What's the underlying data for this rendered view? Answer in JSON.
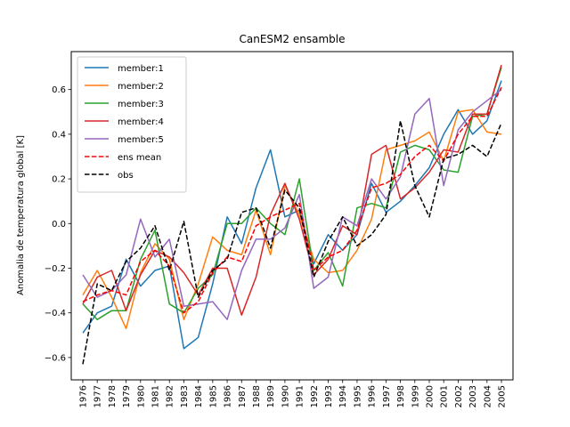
{
  "chart_data": {
    "type": "line",
    "title": "CanESM2 ensamble",
    "xlabel": "",
    "ylabel": "Anomalia de temperatura global [K]",
    "ylim": [
      -0.7,
      0.77
    ],
    "xlim": [
      1975.2,
      2005.8
    ],
    "yticks": [
      -0.6,
      -0.4,
      -0.2,
      0.0,
      0.2,
      0.4,
      0.6
    ],
    "ytick_labels": [
      "−0.6",
      "−0.4",
      "−0.2",
      "0.0",
      "0.2",
      "0.4",
      "0.6"
    ],
    "legend_position": "upper-left",
    "grid": false,
    "x": [
      1976,
      1977,
      1978,
      1979,
      1980,
      1981,
      1982,
      1983,
      1984,
      1985,
      1986,
      1987,
      1988,
      1989,
      1990,
      1991,
      1992,
      1993,
      1994,
      1995,
      1996,
      1997,
      1998,
      1999,
      2000,
      2001,
      2002,
      2003,
      2004,
      2005
    ],
    "series": [
      {
        "name": "member:1",
        "color": "#1f77b4",
        "dash": "solid",
        "values": [
          -0.49,
          -0.4,
          -0.37,
          -0.16,
          -0.28,
          -0.21,
          -0.19,
          -0.56,
          -0.51,
          -0.27,
          0.03,
          -0.09,
          0.16,
          0.33,
          0.03,
          0.06,
          -0.18,
          -0.05,
          -0.12,
          -0.05,
          0.18,
          0.05,
          0.1,
          0.17,
          0.25,
          0.4,
          0.51,
          0.4,
          0.46,
          0.64
        ]
      },
      {
        "name": "member:2",
        "color": "#ff7f0e",
        "dash": "solid",
        "values": [
          -0.32,
          -0.21,
          -0.33,
          -0.47,
          -0.22,
          -0.09,
          -0.16,
          -0.43,
          -0.27,
          -0.06,
          -0.12,
          -0.14,
          0.06,
          -0.14,
          0.17,
          0.04,
          -0.16,
          -0.22,
          -0.21,
          -0.12,
          0.02,
          0.33,
          0.35,
          0.37,
          0.41,
          0.28,
          0.5,
          0.51,
          0.41,
          0.4
        ]
      },
      {
        "name": "member:3",
        "color": "#2ca02c",
        "dash": "solid",
        "values": [
          -0.36,
          -0.43,
          -0.39,
          -0.39,
          -0.16,
          -0.03,
          -0.36,
          -0.4,
          -0.29,
          -0.23,
          0.0,
          0.0,
          0.07,
          0.0,
          -0.05,
          0.2,
          -0.21,
          -0.13,
          -0.28,
          0.07,
          0.09,
          0.07,
          0.32,
          0.35,
          0.33,
          0.24,
          0.23,
          0.48,
          0.49,
          0.7
        ]
      },
      {
        "name": "member:4",
        "color": "#d62728",
        "dash": "solid",
        "values": [
          -0.36,
          -0.24,
          -0.21,
          -0.39,
          -0.23,
          -0.12,
          -0.15,
          -0.22,
          -0.32,
          -0.2,
          -0.2,
          -0.41,
          -0.24,
          0.04,
          0.18,
          0.02,
          -0.23,
          -0.16,
          -0.01,
          -0.05,
          0.31,
          0.35,
          0.11,
          0.16,
          0.23,
          0.33,
          0.32,
          0.49,
          0.49,
          0.71
        ]
      },
      {
        "name": "member:5",
        "color": "#9467bd",
        "dash": "solid",
        "values": [
          -0.23,
          -0.33,
          -0.3,
          -0.23,
          0.02,
          -0.15,
          -0.07,
          -0.37,
          -0.36,
          -0.35,
          -0.43,
          -0.21,
          -0.07,
          -0.07,
          -0.02,
          0.13,
          -0.29,
          -0.24,
          0.03,
          -0.01,
          0.2,
          0.11,
          0.21,
          0.49,
          0.56,
          0.17,
          0.42,
          0.5,
          0.55,
          0.6
        ]
      },
      {
        "name": "ens mean",
        "color": "#ff0000",
        "dash": "dashed",
        "values": [
          -0.35,
          -0.32,
          -0.3,
          -0.32,
          -0.17,
          -0.12,
          -0.19,
          -0.4,
          -0.35,
          -0.22,
          -0.15,
          -0.17,
          -0.01,
          0.03,
          0.06,
          0.09,
          -0.21,
          -0.15,
          -0.12,
          -0.03,
          0.16,
          0.18,
          0.22,
          0.3,
          0.35,
          0.28,
          0.4,
          0.48,
          0.48,
          0.61
        ]
      },
      {
        "name": "obs",
        "color": "#000000",
        "dash": "dashed",
        "values": [
          -0.63,
          -0.27,
          -0.3,
          -0.17,
          -0.11,
          -0.01,
          -0.21,
          0.01,
          -0.33,
          -0.21,
          -0.16,
          0.05,
          0.07,
          -0.11,
          0.15,
          0.07,
          -0.24,
          -0.08,
          0.03,
          -0.1,
          -0.05,
          0.04,
          0.46,
          0.17,
          0.03,
          0.29,
          0.31,
          0.35,
          0.3,
          0.45
        ]
      }
    ]
  }
}
